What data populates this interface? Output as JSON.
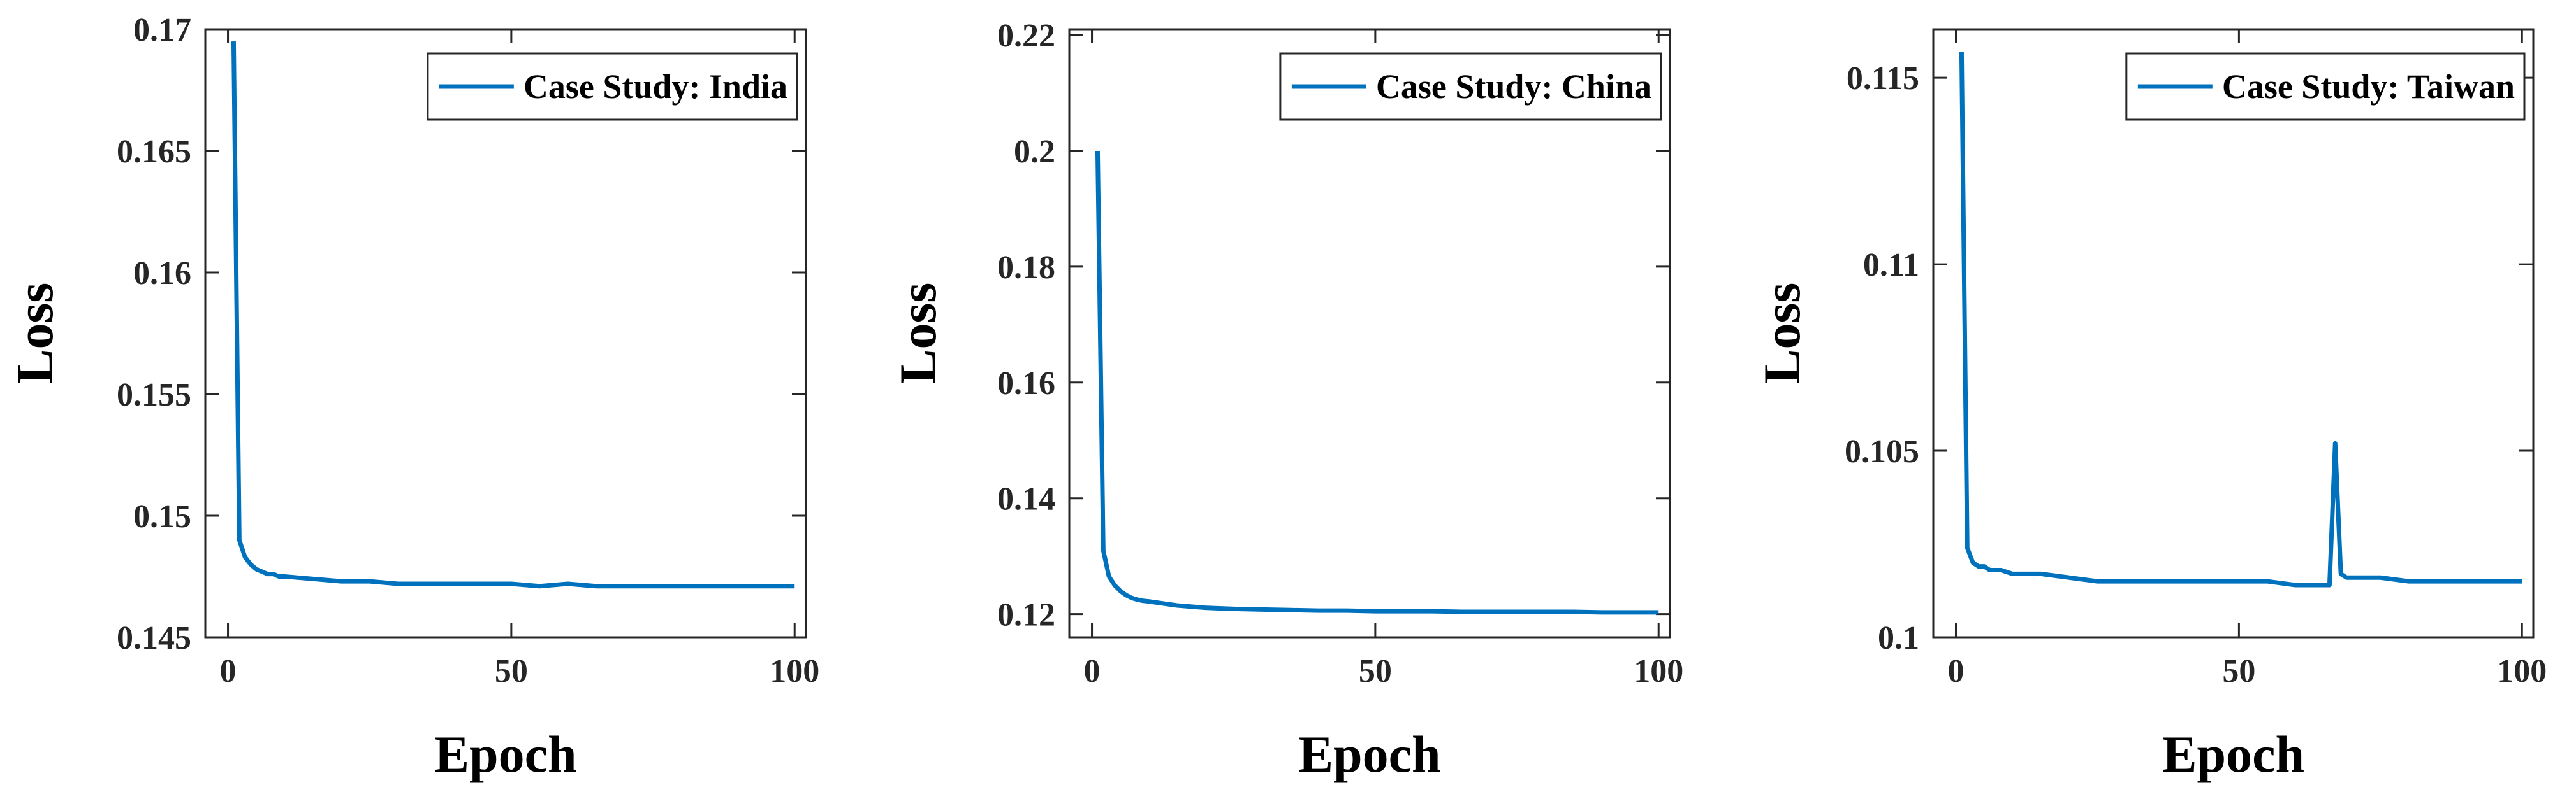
{
  "chart_data": [
    {
      "type": "line",
      "xlabel": "Epoch",
      "ylabel": "Loss",
      "x": [
        1,
        2,
        3,
        4,
        5,
        6,
        7,
        8,
        9,
        10,
        15,
        20,
        25,
        30,
        35,
        40,
        45,
        50,
        55,
        60,
        65,
        70,
        75,
        80,
        85,
        90,
        95,
        100
      ],
      "series": [
        {
          "name": "Case Study: India",
          "color": "#0072bd",
          "values": [
            0.1695,
            0.149,
            0.1483,
            0.148,
            0.1478,
            0.1477,
            0.1476,
            0.1476,
            0.1475,
            0.1475,
            0.1474,
            0.1473,
            0.1473,
            0.1472,
            0.1472,
            0.1472,
            0.1472,
            0.1472,
            0.1471,
            0.1472,
            0.1471,
            0.1471,
            0.1471,
            0.1471,
            0.1471,
            0.1471,
            0.1471,
            0.1471
          ]
        }
      ],
      "xlim": [
        -4,
        102
      ],
      "xticks": [
        0,
        50,
        100
      ],
      "ylim": [
        0.145,
        0.17
      ],
      "yticks": [
        0.145,
        0.15,
        0.155,
        0.16,
        0.165,
        0.17
      ],
      "legend": "upper right"
    },
    {
      "type": "line",
      "xlabel": "Epoch",
      "ylabel": "Loss",
      "x": [
        1,
        2,
        3,
        4,
        5,
        6,
        7,
        8,
        9,
        10,
        15,
        20,
        25,
        30,
        35,
        40,
        45,
        50,
        55,
        60,
        65,
        70,
        75,
        80,
        85,
        90,
        95,
        100
      ],
      "series": [
        {
          "name": "Case Study: China",
          "color": "#0072bd",
          "values": [
            0.2,
            0.131,
            0.1265,
            0.125,
            0.124,
            0.1233,
            0.1228,
            0.1225,
            0.1223,
            0.1222,
            0.1215,
            0.1211,
            0.1209,
            0.1208,
            0.1207,
            0.1206,
            0.1206,
            0.1205,
            0.1205,
            0.1205,
            0.1204,
            0.1204,
            0.1204,
            0.1204,
            0.1204,
            0.1203,
            0.1203,
            0.1203
          ]
        }
      ],
      "xlim": [
        -4,
        102
      ],
      "xticks": [
        0,
        50,
        100
      ],
      "ylim": [
        0.116,
        0.221
      ],
      "yticks": [
        0.12,
        0.14,
        0.16,
        0.18,
        0.2,
        0.22
      ],
      "legend": "upper right"
    },
    {
      "type": "line",
      "xlabel": "Epoch",
      "ylabel": "Loss",
      "x": [
        1,
        2,
        3,
        4,
        5,
        6,
        8,
        10,
        15,
        20,
        25,
        30,
        35,
        40,
        45,
        50,
        55,
        60,
        65,
        66,
        67,
        68,
        69,
        70,
        75,
        80,
        85,
        90,
        95,
        100
      ],
      "series": [
        {
          "name": "Case Study: Taiwan",
          "color": "#0072bd",
          "values": [
            0.1157,
            0.1024,
            0.102,
            0.1019,
            0.1019,
            0.1018,
            0.1018,
            0.1017,
            0.1017,
            0.1016,
            0.1015,
            0.1015,
            0.1015,
            0.1015,
            0.1015,
            0.1015,
            0.1015,
            0.1014,
            0.1014,
            0.1014,
            0.1052,
            0.1017,
            0.1016,
            0.1016,
            0.1016,
            0.1015,
            0.1015,
            0.1015,
            0.1015,
            0.1015
          ]
        }
      ],
      "xlim": [
        -4,
        102
      ],
      "xticks": [
        0,
        50,
        100
      ],
      "ylim": [
        0.1,
        0.1163
      ],
      "yticks": [
        0.1,
        0.105,
        0.11,
        0.115
      ],
      "legend": "upper right"
    }
  ]
}
